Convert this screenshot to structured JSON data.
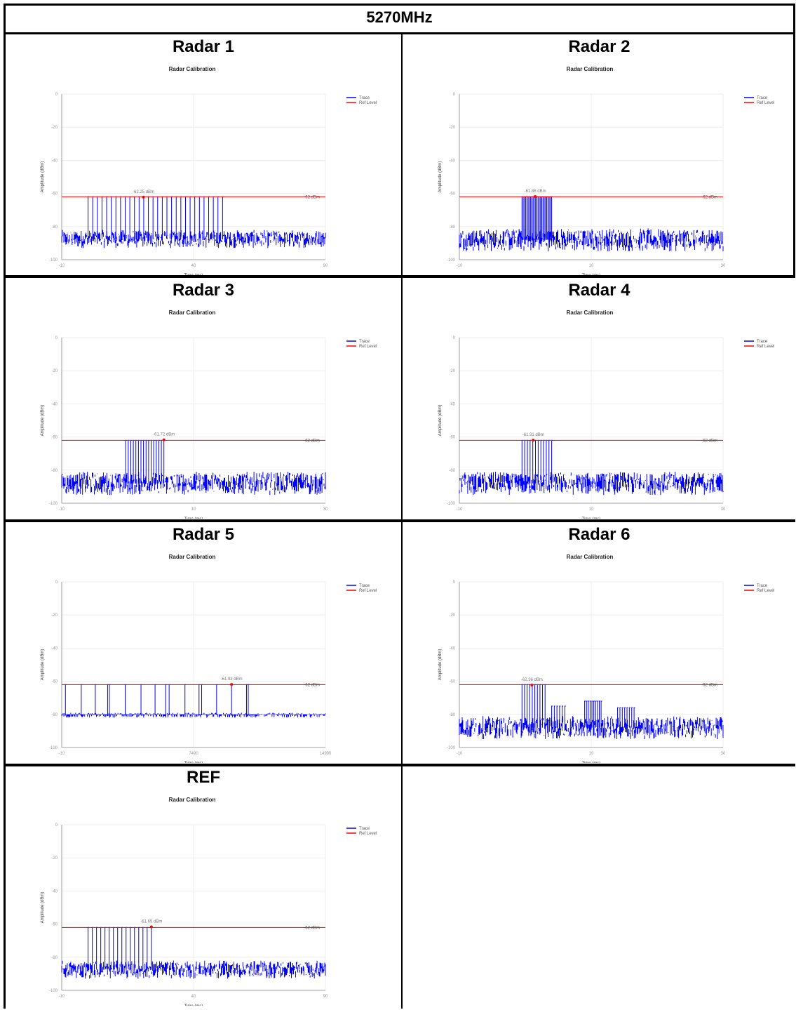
{
  "header": {
    "title": "5270MHz"
  },
  "chart_data": [
    {
      "type": "line",
      "panel": "Radar 1",
      "title": "Radar Calibration",
      "xlabel": "Time (ms)",
      "ylabel": "Amplitude (dBm)",
      "xlim": [
        -10,
        90
      ],
      "ylim": [
        -100,
        0
      ],
      "xticks": [
        "-10",
        "40",
        "90"
      ],
      "yticks": [
        "0",
        "-20",
        "-40",
        "-60",
        "-80",
        "-100"
      ],
      "ref_level": -62,
      "ref_label": "-62 dBm",
      "marker": {
        "x": 21,
        "y": -62.25,
        "label": "-62.25 dBm"
      },
      "noise_floor": [
        -93,
        -82
      ],
      "pulses": {
        "start": 0,
        "end": 51,
        "count": 30,
        "peak": -62,
        "width": 0.4
      },
      "legend": [
        "Trace",
        "Ref Level"
      ],
      "series": [
        {
          "name": "Trace",
          "color": "#0000ff"
        },
        {
          "name": "Ref Level",
          "color": "#ff0000"
        }
      ]
    },
    {
      "type": "line",
      "panel": "Radar 2",
      "title": "Radar Calibration",
      "xlabel": "Time (ms)",
      "ylabel": "Amplitude (dBm)",
      "xlim": [
        -10,
        30
      ],
      "ylim": [
        -100,
        0
      ],
      "xticks": [
        "-10",
        "10",
        "30"
      ],
      "yticks": [
        "0",
        "-20",
        "-40",
        "-60",
        "-80",
        "-100"
      ],
      "ref_level": -62,
      "ref_label": "-62 dBm",
      "marker": {
        "x": 1.5,
        "y": -61.86,
        "label": "-61.86 dBm"
      },
      "noise_floor": [
        -95,
        -81
      ],
      "pulses": {
        "start": -0.5,
        "end": 4,
        "count": 25,
        "peak": -62,
        "width": 0.08
      },
      "legend": [
        "Trace",
        "Ref Level"
      ],
      "series": [
        {
          "name": "Trace",
          "color": "#0000ff"
        },
        {
          "name": "Ref Level",
          "color": "#ff0000"
        }
      ]
    },
    {
      "type": "line",
      "panel": "Radar 3",
      "title": "Radar Calibration",
      "xlabel": "Time (ms)",
      "ylabel": "Amplitude (dBm)",
      "xlim": [
        -10,
        30
      ],
      "ylim": [
        -100,
        0
      ],
      "xticks": [
        "-10",
        "10",
        "30"
      ],
      "yticks": [
        "0",
        "-20",
        "-40",
        "-60",
        "-80",
        "-100"
      ],
      "ref_level": -62,
      "ref_label": "-62 dBm",
      "marker": {
        "x": 5.5,
        "y": -61.72,
        "label": "-61.72 dBm"
      },
      "noise_floor": [
        -95,
        -81
      ],
      "pulses": {
        "start": -0.3,
        "end": 5.5,
        "count": 16,
        "peak": -62,
        "width": 0.08
      },
      "legend": [
        "Trace",
        "Ref Level"
      ],
      "series": [
        {
          "name": "Trace",
          "color": "#0000ff"
        },
        {
          "name": "Ref Level",
          "color": "#ff0000"
        }
      ]
    },
    {
      "type": "line",
      "panel": "Radar 4",
      "title": "Radar Calibration",
      "xlabel": "Time (ms)",
      "ylabel": "Amplitude (dBm)",
      "xlim": [
        -10,
        30
      ],
      "ylim": [
        -100,
        0
      ],
      "xticks": [
        "-10",
        "10",
        "30"
      ],
      "yticks": [
        "0",
        "-20",
        "-40",
        "-60",
        "-80",
        "-100"
      ],
      "ref_level": -62,
      "ref_label": "-62 dBm",
      "marker": {
        "x": 1.2,
        "y": -61.91,
        "label": "-61.91 dBm"
      },
      "noise_floor": [
        -95,
        -81
      ],
      "pulses": {
        "start": -0.5,
        "end": 4,
        "count": 12,
        "peak": -62,
        "width": 0.08
      },
      "legend": [
        "Trace",
        "Ref Level"
      ],
      "series": [
        {
          "name": "Trace",
          "color": "#0000ff"
        },
        {
          "name": "Ref Level",
          "color": "#ff0000"
        }
      ]
    },
    {
      "type": "line",
      "panel": "Radar 5",
      "title": "Radar Calibration",
      "xlabel": "Time (ms)",
      "ylabel": "Amplitude (dBm)",
      "xlim": [
        -10,
        14990
      ],
      "ylim": [
        -100,
        0
      ],
      "xticks": [
        "-10",
        "7490",
        "14990"
      ],
      "yticks": [
        "0",
        "-20",
        "-40",
        "-60",
        "-80",
        "-100"
      ],
      "ref_level": -62,
      "ref_label": "-62 dBm",
      "marker": {
        "x": 9650,
        "y": -61.92,
        "label": "-61.92 dBm"
      },
      "noise_floor": [
        -82,
        -79
      ],
      "pulse_positions": [
        200,
        1100,
        1900,
        2600,
        2700,
        3600,
        4500,
        5300,
        5900,
        6100,
        7000,
        7800,
        7950,
        8800,
        9650,
        10500,
        10600
      ],
      "pulse_peak": -62,
      "legend": [
        "Trace",
        "Ref Level"
      ],
      "series": [
        {
          "name": "Trace",
          "color": "#0000ff"
        },
        {
          "name": "Ref Level",
          "color": "#ff0000"
        }
      ]
    },
    {
      "type": "line",
      "panel": "Radar 6",
      "title": "Radar Calibration",
      "xlabel": "Time (ms)",
      "ylabel": "Amplitude (dBm)",
      "xlim": [
        -10,
        30
      ],
      "ylim": [
        -100,
        0
      ],
      "xticks": [
        "-10",
        "10",
        "30"
      ],
      "yticks": [
        "0",
        "-20",
        "-40",
        "-60",
        "-80",
        "-100"
      ],
      "ref_level": -62,
      "ref_label": "-62 dBm",
      "marker": {
        "x": 1,
        "y": -62.36,
        "label": "-62.36 dBm"
      },
      "noise_floor": [
        -95,
        -81
      ],
      "pulse_groups": [
        {
          "start": -0.5,
          "end": 3,
          "count": 10,
          "peak": -62
        },
        {
          "start": 4,
          "end": 6,
          "count": 6,
          "peak": -75
        },
        {
          "start": 9,
          "end": 11.5,
          "count": 10,
          "peak": -72
        },
        {
          "start": 14,
          "end": 16.5,
          "count": 8,
          "peak": -76
        }
      ],
      "legend": [
        "Trace",
        "Ref Level"
      ],
      "series": [
        {
          "name": "Trace",
          "color": "#0000ff"
        },
        {
          "name": "Ref Level",
          "color": "#ff0000"
        }
      ]
    },
    {
      "type": "line",
      "panel": "REF",
      "title": "Radar Calibration",
      "xlabel": "Time (ms)",
      "ylabel": "Amplitude (dBm)",
      "xlim": [
        -10,
        90
      ],
      "ylim": [
        -100,
        0
      ],
      "xticks": [
        "-10",
        "40",
        "90"
      ],
      "yticks": [
        "0",
        "-20",
        "-40",
        "-60",
        "-80",
        "-100"
      ],
      "ref_level": -62,
      "ref_label": "-62 dBm",
      "marker": {
        "x": 24,
        "y": -61.65,
        "label": "-61.65 dBm"
      },
      "noise_floor": [
        -93,
        -82
      ],
      "pulses": {
        "start": 0,
        "end": 24,
        "count": 16,
        "peak": -62,
        "width": 0.4
      },
      "legend": [
        "Trace",
        "Ref Level"
      ],
      "series": [
        {
          "name": "Trace",
          "color": "#0000ff"
        },
        {
          "name": "Ref Level",
          "color": "#ff0000"
        }
      ]
    }
  ]
}
